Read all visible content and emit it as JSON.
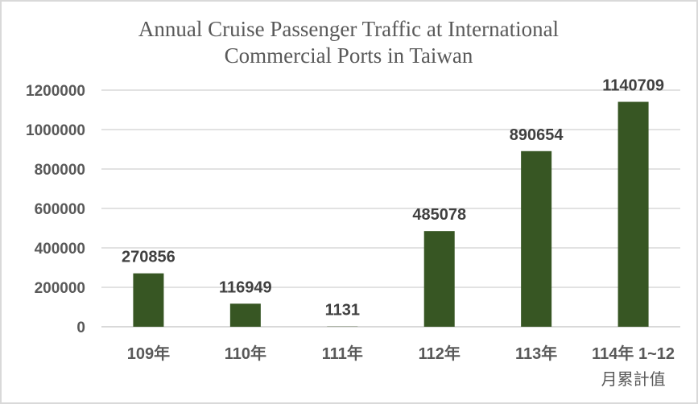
{
  "chart_data": {
    "type": "bar",
    "title": [
      "Annual Cruise Passenger Traffic at International",
      "Commercial Ports in Taiwan"
    ],
    "categories": [
      [
        "109年"
      ],
      [
        "110年"
      ],
      [
        "111年"
      ],
      [
        "112年"
      ],
      [
        "113年"
      ],
      [
        "114年 1~12",
        "月累計值"
      ]
    ],
    "values": [
      270856,
      116949,
      1131,
      485078,
      890654,
      1140709
    ],
    "data_labels": [
      "270856",
      "116949",
      "1131",
      "485078",
      "890654",
      "1140709"
    ],
    "xlabel": "",
    "ylabel": "",
    "ylim": [
      0,
      1200000
    ],
    "yticks": [
      "0",
      "200000",
      "400000",
      "600000",
      "800000",
      "1000000",
      "1200000"
    ],
    "grid": true,
    "legend": "none",
    "bar_color": "#375623"
  }
}
